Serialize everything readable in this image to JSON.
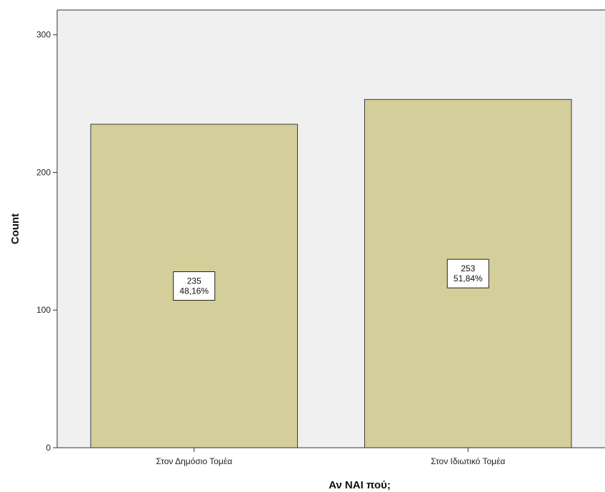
{
  "chart_data": {
    "type": "bar",
    "title": "",
    "xlabel": "Αν ΝΑΙ πού;",
    "ylabel": "Count",
    "categories": [
      "Στον Δημόσιο Τομέα",
      "Στον Ιδιωτικό Τομέα"
    ],
    "values": [
      235,
      253
    ],
    "percent_labels": [
      "48,16%",
      "51,84%"
    ],
    "ylim": [
      0,
      318
    ],
    "yticks": [
      0,
      100,
      200,
      300
    ],
    "grid": false,
    "legend": "none",
    "colors": {
      "bar_fill": "#d3ce9a",
      "bar_stroke": "#3c3c3c",
      "plot_background": "#f0f0f0",
      "axis": "#333333"
    }
  }
}
